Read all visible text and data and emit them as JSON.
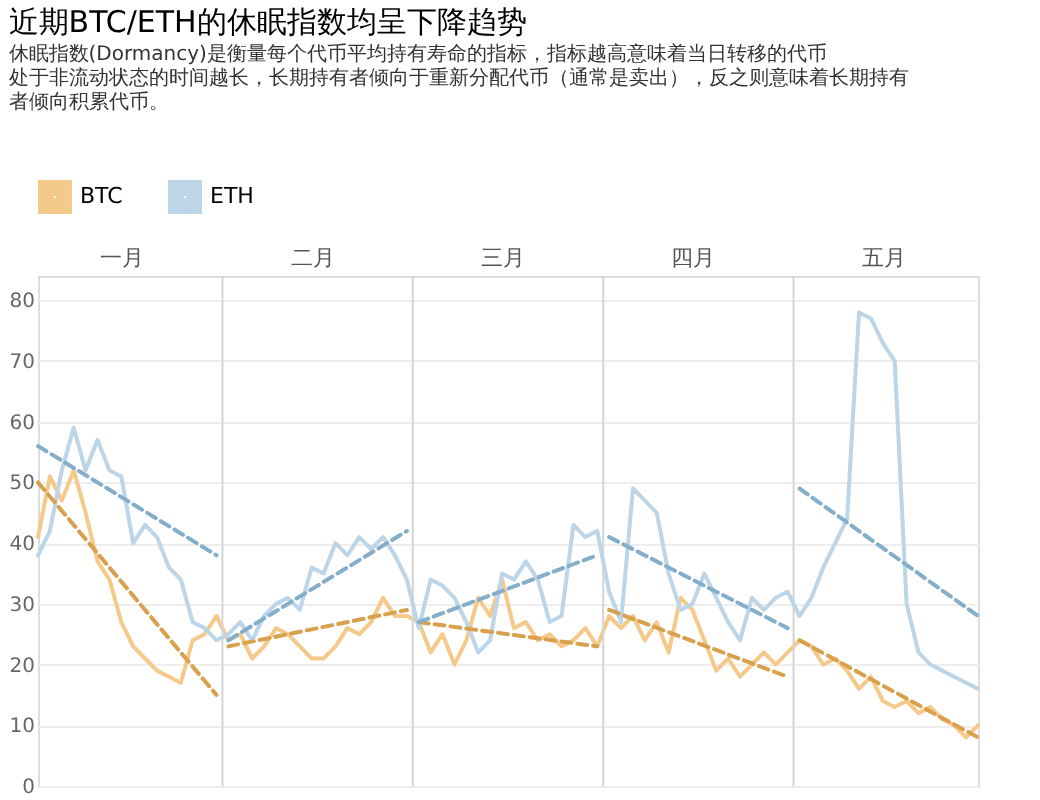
{
  "chart_data": {
    "type": "line",
    "title": "近期BTC/ETH的休眠指数均呈下降趋势",
    "subtitle": "休眠指数(Dormancy)是衡量每个代币平均持有寿命的指标，指标越高意味着当日转移的代币处于非流动状态的时间越长，长期持有者倾向于重新分配代币（通常是卖出），反之则意味着长期持有者倾向积累代币。",
    "legend": "top left",
    "grid": "y",
    "ylim": [
      0,
      84
    ],
    "yticks": [
      0,
      10,
      20,
      30,
      40,
      50,
      60,
      70,
      80
    ],
    "categories": [
      null,
      null,
      null,
      null,
      null,
      null,
      null,
      "一月",
      null,
      null,
      null,
      null,
      null,
      null,
      null,
      null,
      null,
      null,
      null,
      null,
      null,
      null,
      null,
      "二月",
      null,
      null,
      null,
      null,
      null,
      null,
      null,
      null,
      null,
      null,
      null,
      null,
      null,
      null,
      null,
      "三月",
      null,
      null,
      null,
      null,
      null,
      null,
      null,
      null,
      null,
      null,
      null,
      null,
      null,
      null,
      null,
      "四月",
      null,
      null,
      null,
      null,
      null,
      null,
      null,
      null,
      null,
      null,
      null,
      null,
      null,
      null,
      null,
      "五月",
      null,
      null,
      null,
      null,
      null,
      null,
      null,
      null
    ],
    "series": [
      {
        "name": "BTC",
        "color": "#f5c98a",
        "line_style": "solid",
        "values": [
          41,
          51,
          47,
          52,
          45,
          37,
          34,
          27,
          23,
          21,
          19,
          18,
          17,
          24,
          25,
          28,
          24,
          25,
          21,
          23,
          26,
          25,
          23,
          21,
          21,
          23,
          26,
          25,
          27,
          31,
          28,
          28,
          27,
          22,
          25,
          20,
          24,
          31,
          28,
          34,
          26,
          27,
          24,
          25,
          23,
          24,
          26,
          23,
          28,
          26,
          28,
          24,
          27,
          22,
          31,
          29,
          24,
          19,
          21,
          18,
          20,
          22,
          20,
          22,
          24,
          23,
          20,
          21,
          19,
          16,
          18,
          14,
          13,
          14,
          12,
          13,
          11,
          10,
          8,
          10
        ]
      },
      {
        "name": "ETH",
        "color": "#bcd5e8",
        "line_style": "solid",
        "values": [
          38,
          42,
          52,
          59,
          52,
          57,
          52,
          51,
          40,
          43,
          41,
          36,
          34,
          27,
          26,
          24,
          25,
          27,
          24,
          28,
          30,
          31,
          29,
          36,
          35,
          40,
          38,
          41,
          39,
          41,
          38,
          34,
          26,
          34,
          33,
          31,
          27,
          22,
          24,
          35,
          34,
          37,
          34,
          27,
          28,
          43,
          41,
          42,
          32,
          27,
          49,
          47,
          45,
          35,
          29,
          30,
          35,
          31,
          27,
          24,
          31,
          29,
          31,
          32,
          28,
          31,
          36,
          40,
          44,
          78,
          77,
          73,
          70,
          30,
          22,
          20,
          19,
          18,
          17,
          16
        ]
      },
      {
        "color": "#d9a04e",
        "line_style": "dashed",
        "values": [
          50,
          null,
          null,
          null,
          null,
          null,
          null,
          null,
          null,
          null,
          null,
          null,
          null,
          null,
          null,
          15,
          null,
          null,
          null,
          null,
          null,
          null,
          null,
          null,
          null,
          null,
          null,
          null,
          null,
          null,
          null,
          null,
          null,
          null,
          null,
          null,
          null,
          null,
          null,
          null,
          null,
          null,
          null,
          null,
          null,
          null,
          null,
          null,
          null,
          null,
          null,
          null,
          null,
          null,
          null,
          null,
          null,
          null,
          null,
          null,
          null,
          null,
          null,
          null,
          null,
          null,
          null,
          null,
          null,
          null,
          null,
          null,
          null,
          null,
          null,
          null,
          null,
          null,
          null,
          null
        ]
      },
      {
        "color": "#85aecb",
        "line_style": "dashed",
        "values": [
          56,
          null,
          null,
          null,
          null,
          null,
          null,
          null,
          null,
          null,
          null,
          null,
          null,
          null,
          null,
          38,
          null,
          null,
          null,
          null,
          null,
          null,
          null,
          null,
          null,
          null,
          null,
          null,
          null,
          null,
          null,
          null,
          null,
          null,
          null,
          null,
          null,
          null,
          null,
          null,
          null,
          null,
          null,
          null,
          null,
          null,
          null,
          null,
          null,
          null,
          null,
          null,
          null,
          null,
          null,
          null,
          null,
          null,
          null,
          null,
          null,
          null,
          null,
          null,
          null,
          null,
          null,
          null,
          null,
          null,
          null,
          null,
          null,
          null,
          null,
          null,
          null,
          null,
          null,
          null
        ]
      },
      {
        "color": "#d9a04e",
        "line_style": "dashed",
        "values": [
          null,
          null,
          null,
          null,
          null,
          null,
          null,
          null,
          null,
          null,
          null,
          null,
          null,
          null,
          null,
          null,
          23,
          null,
          null,
          null,
          null,
          null,
          null,
          null,
          null,
          null,
          null,
          null,
          null,
          null,
          null,
          29,
          null,
          null,
          null,
          null,
          null,
          null,
          null,
          null,
          null,
          null,
          null,
          null,
          null,
          null,
          null,
          null,
          null,
          null,
          null,
          null,
          null,
          null,
          null,
          null,
          null,
          null,
          null,
          null,
          null,
          null,
          null,
          null,
          null,
          null,
          null,
          null,
          null,
          null,
          null,
          null,
          null,
          null,
          null,
          null,
          null,
          null,
          null,
          null
        ]
      },
      {
        "color": "#85aecb",
        "line_style": "dashed",
        "values": [
          null,
          null,
          null,
          null,
          null,
          null,
          null,
          null,
          null,
          null,
          null,
          null,
          null,
          null,
          null,
          null,
          24,
          null,
          null,
          null,
          null,
          null,
          null,
          null,
          null,
          null,
          null,
          null,
          null,
          null,
          null,
          42,
          null,
          null,
          null,
          null,
          null,
          null,
          null,
          null,
          null,
          null,
          null,
          null,
          null,
          null,
          null,
          null,
          null,
          null,
          null,
          null,
          null,
          null,
          null,
          null,
          null,
          null,
          null,
          null,
          null,
          null,
          null,
          null,
          null,
          null,
          null,
          null,
          null,
          null,
          null,
          null,
          null,
          null,
          null,
          null,
          null,
          null,
          null,
          null
        ]
      },
      {
        "color": "#d9a04e",
        "line_style": "dashed",
        "values": [
          null,
          null,
          null,
          null,
          null,
          null,
          null,
          null,
          null,
          null,
          null,
          null,
          null,
          null,
          null,
          null,
          null,
          null,
          null,
          null,
          null,
          null,
          null,
          null,
          null,
          null,
          null,
          null,
          null,
          null,
          null,
          null,
          27,
          null,
          null,
          null,
          null,
          null,
          null,
          null,
          null,
          null,
          null,
          null,
          null,
          null,
          null,
          23,
          null,
          null,
          null,
          null,
          null,
          null,
          null,
          null,
          null,
          null,
          null,
          null,
          null,
          null,
          null,
          null,
          null,
          null,
          null,
          null,
          null,
          null,
          null,
          null,
          null,
          null,
          null,
          null,
          null,
          null,
          null,
          null
        ]
      },
      {
        "color": "#85aecb",
        "line_style": "dashed",
        "values": [
          null,
          null,
          null,
          null,
          null,
          null,
          null,
          null,
          null,
          null,
          null,
          null,
          null,
          null,
          null,
          null,
          null,
          null,
          null,
          null,
          null,
          null,
          null,
          null,
          null,
          null,
          null,
          null,
          null,
          null,
          null,
          null,
          27,
          null,
          null,
          null,
          null,
          null,
          null,
          null,
          null,
          null,
          null,
          null,
          null,
          null,
          null,
          38,
          null,
          null,
          null,
          null,
          null,
          null,
          null,
          null,
          null,
          null,
          null,
          null,
          null,
          null,
          null,
          null,
          null,
          null,
          null,
          null,
          null,
          null,
          null,
          null,
          null,
          null,
          null,
          null,
          null,
          null,
          null,
          null
        ]
      },
      {
        "color": "#d9a04e",
        "line_style": "dashed",
        "values": [
          null,
          null,
          null,
          null,
          null,
          null,
          null,
          null,
          null,
          null,
          null,
          null,
          null,
          null,
          null,
          null,
          null,
          null,
          null,
          null,
          null,
          null,
          null,
          null,
          null,
          null,
          null,
          null,
          null,
          null,
          null,
          null,
          null,
          null,
          null,
          null,
          null,
          null,
          null,
          null,
          null,
          null,
          null,
          null,
          null,
          null,
          null,
          null,
          29,
          null,
          null,
          null,
          null,
          null,
          null,
          null,
          null,
          null,
          null,
          null,
          null,
          null,
          null,
          18,
          null,
          null,
          null,
          null,
          null,
          null,
          null,
          null,
          null,
          null,
          null,
          null,
          null,
          null,
          null,
          null
        ]
      },
      {
        "color": "#85aecb",
        "line_style": "dashed",
        "values": [
          null,
          null,
          null,
          null,
          null,
          null,
          null,
          null,
          null,
          null,
          null,
          null,
          null,
          null,
          null,
          null,
          null,
          null,
          null,
          null,
          null,
          null,
          null,
          null,
          null,
          null,
          null,
          null,
          null,
          null,
          null,
          null,
          null,
          null,
          null,
          null,
          null,
          null,
          null,
          null,
          null,
          null,
          null,
          null,
          null,
          null,
          null,
          null,
          41,
          null,
          null,
          null,
          null,
          null,
          null,
          null,
          null,
          null,
          null,
          null,
          null,
          null,
          null,
          26,
          null,
          null,
          null,
          null,
          null,
          null,
          null,
          null,
          null,
          null,
          null,
          null,
          null,
          null,
          null,
          null
        ]
      },
      {
        "color": "#d9a04e",
        "line_style": "dashed",
        "values": [
          null,
          null,
          null,
          null,
          null,
          null,
          null,
          null,
          null,
          null,
          null,
          null,
          null,
          null,
          null,
          null,
          null,
          null,
          null,
          null,
          null,
          null,
          null,
          null,
          null,
          null,
          null,
          null,
          null,
          null,
          null,
          null,
          null,
          null,
          null,
          null,
          null,
          null,
          null,
          null,
          null,
          null,
          null,
          null,
          null,
          null,
          null,
          null,
          null,
          null,
          null,
          null,
          null,
          null,
          null,
          null,
          null,
          null,
          null,
          null,
          null,
          null,
          null,
          null,
          24,
          null,
          null,
          null,
          null,
          null,
          null,
          null,
          null,
          null,
          null,
          null,
          null,
          null,
          null,
          8
        ]
      },
      {
        "color": "#85aecb",
        "line_style": "dashed",
        "values": [
          null,
          null,
          null,
          null,
          null,
          null,
          null,
          null,
          null,
          null,
          null,
          null,
          null,
          null,
          null,
          null,
          null,
          null,
          null,
          null,
          null,
          null,
          null,
          null,
          null,
          null,
          null,
          null,
          null,
          null,
          null,
          null,
          null,
          null,
          null,
          null,
          null,
          null,
          null,
          null,
          null,
          null,
          null,
          null,
          null,
          null,
          null,
          null,
          null,
          null,
          null,
          null,
          null,
          null,
          null,
          null,
          null,
          null,
          null,
          null,
          null,
          null,
          null,
          null,
          49,
          null,
          null,
          null,
          null,
          null,
          null,
          null,
          null,
          null,
          null,
          null,
          null,
          null,
          null,
          28
        ]
      }
    ]
  }
}
